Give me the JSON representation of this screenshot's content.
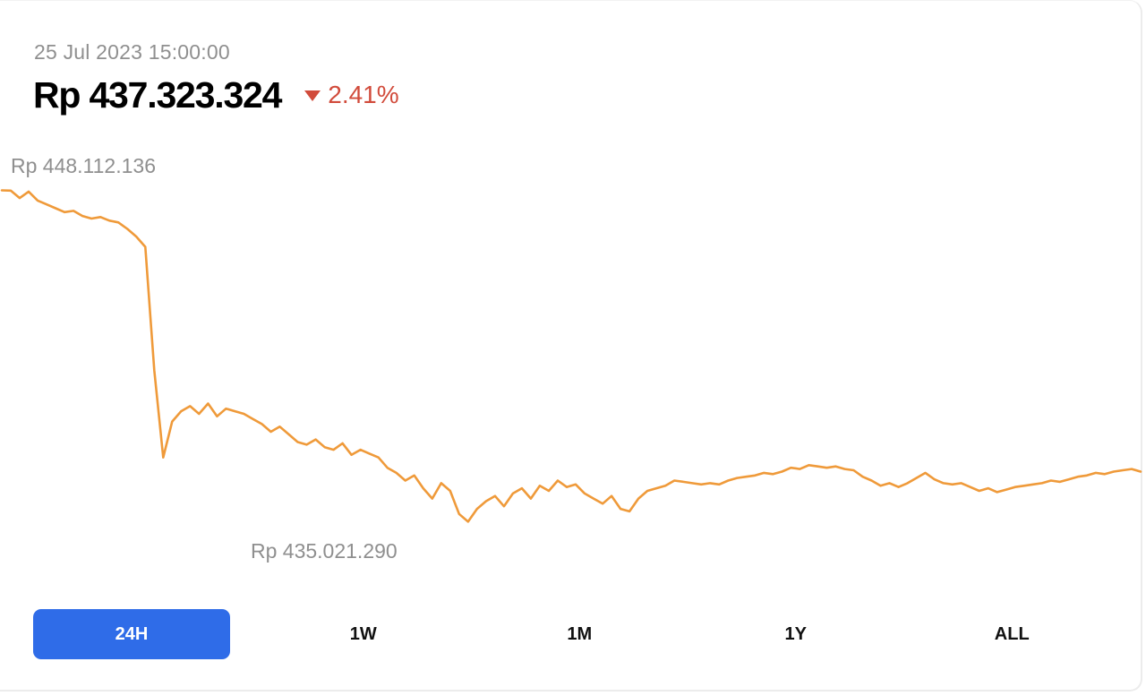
{
  "header": {
    "timestamp": "25 Jul 2023 15:00:00",
    "price": "Rp 437.323.324",
    "change": "2.41%",
    "change_direction": "down",
    "change_color": "#d14b3b"
  },
  "chart_data": {
    "type": "line",
    "period": "24H",
    "line_color": "#ef9a3a",
    "ylim": [
      434800000,
      448400000
    ],
    "high_label": "Rp 448.112.136",
    "low_label": "Rp 435.021.290",
    "series": [
      {
        "values": [
          448000000,
          447990000,
          447700000,
          447950000,
          447600000,
          447450000,
          447300000,
          447150000,
          447200000,
          447000000,
          446900000,
          446960000,
          446820000,
          446750000,
          446500000,
          446200000,
          445800000,
          441000000,
          437600000,
          439000000,
          439400000,
          439600000,
          439300000,
          439700000,
          439200000,
          439500000,
          439400000,
          439300000,
          439100000,
          438900000,
          438600000,
          438800000,
          438500000,
          438200000,
          438100000,
          438300000,
          438000000,
          437900000,
          438150000,
          437700000,
          437900000,
          437750000,
          437600000,
          437200000,
          437000000,
          436700000,
          436900000,
          436400000,
          436000000,
          436600000,
          436300000,
          435400000,
          435100000,
          435600000,
          435900000,
          436100000,
          435700000,
          436200000,
          436400000,
          436000000,
          436500000,
          436300000,
          436700000,
          436450000,
          436550000,
          436200000,
          436000000,
          435800000,
          436100000,
          435600000,
          435500000,
          436000000,
          436300000,
          436400000,
          436500000,
          436700000,
          436650000,
          436600000,
          436550000,
          436600000,
          436550000,
          436700000,
          436800000,
          436850000,
          436900000,
          437000000,
          436950000,
          437050000,
          437200000,
          437150000,
          437300000,
          437250000,
          437200000,
          437250000,
          437150000,
          437100000,
          436850000,
          436700000,
          436500000,
          436600000,
          436450000,
          436600000,
          436800000,
          437000000,
          436750000,
          436600000,
          436550000,
          436600000,
          436450000,
          436300000,
          436400000,
          436250000,
          436350000,
          436450000,
          436500000,
          436550000,
          436600000,
          436700000,
          436650000,
          436750000,
          436850000,
          436900000,
          437000000,
          436950000,
          437050000,
          437100000,
          437150000,
          437050000
        ]
      }
    ],
    "tabs": [
      {
        "label": "24H",
        "active": true
      },
      {
        "label": "1W",
        "active": false
      },
      {
        "label": "1M",
        "active": false
      },
      {
        "label": "1Y",
        "active": false
      },
      {
        "label": "ALL",
        "active": false
      }
    ]
  }
}
